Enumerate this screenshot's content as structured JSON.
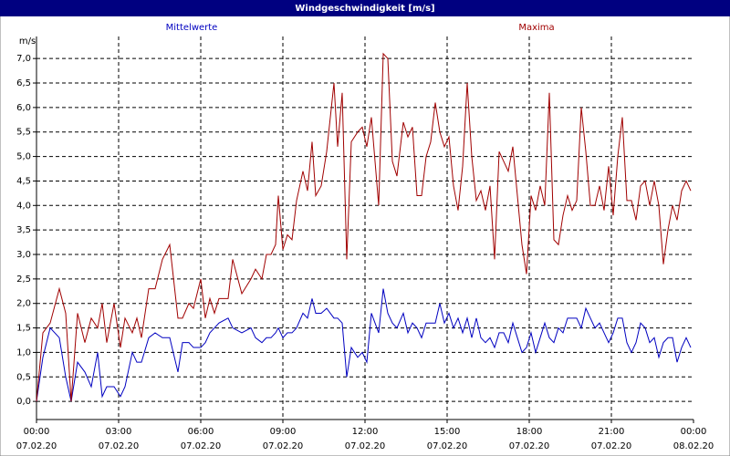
{
  "chart_data": {
    "type": "line",
    "title": "Windgeschwindigkeit [m/s]",
    "y_label": "m/s",
    "x": [
      0,
      14,
      30,
      50,
      64,
      76,
      90,
      106,
      120,
      134,
      144,
      154,
      170,
      184,
      194,
      210,
      220,
      230,
      246,
      260,
      276,
      292,
      310,
      320,
      334,
      344,
      360,
      370,
      380,
      390,
      400,
      420,
      430,
      450,
      470,
      480,
      494,
      504,
      514,
      524,
      530,
      540,
      550,
      560,
      570,
      584,
      594,
      604,
      612,
      624,
      636,
      652,
      660,
      670,
      680,
      690,
      704,
      714,
      724,
      734,
      750,
      760,
      770,
      780,
      790,
      804,
      814,
      824,
      834,
      844,
      854,
      864,
      874,
      884,
      894,
      904,
      914,
      924,
      934,
      944,
      954,
      964,
      974,
      984,
      994,
      1004,
      1014,
      1024,
      1034,
      1044,
      1054,
      1064,
      1074,
      1084,
      1094,
      1104,
      1114,
      1124,
      1134,
      1144,
      1154,
      1164,
      1174,
      1184,
      1194,
      1204,
      1214,
      1224,
      1234,
      1244,
      1254,
      1264,
      1274,
      1284,
      1294,
      1304,
      1314,
      1324,
      1334,
      1344,
      1354,
      1364,
      1374,
      1384,
      1394,
      1404,
      1414,
      1424,
      1434
    ],
    "series": [
      {
        "name": "Mittelwerte",
        "color": "#0000c0",
        "values": [
          0,
          0.9,
          1.5,
          1.3,
          0.5,
          0.0,
          0.8,
          0.6,
          0.3,
          1.0,
          0.1,
          0.3,
          0.3,
          0.1,
          0.3,
          1.0,
          0.8,
          0.8,
          1.3,
          1.4,
          1.3,
          1.3,
          0.6,
          1.2,
          1.2,
          1.1,
          1.1,
          1.2,
          1.4,
          1.5,
          1.6,
          1.7,
          1.5,
          1.4,
          1.5,
          1.3,
          1.2,
          1.3,
          1.3,
          1.4,
          1.5,
          1.3,
          1.4,
          1.4,
          1.5,
          1.8,
          1.7,
          2.1,
          1.8,
          1.8,
          1.9,
          1.7,
          1.7,
          1.6,
          0.5,
          1.1,
          0.9,
          1.0,
          0.8,
          1.8,
          1.4,
          2.3,
          1.8,
          1.6,
          1.5,
          1.8,
          1.4,
          1.6,
          1.5,
          1.3,
          1.6,
          1.6,
          1.6,
          2.0,
          1.6,
          1.8,
          1.5,
          1.7,
          1.4,
          1.7,
          1.3,
          1.7,
          1.3,
          1.2,
          1.3,
          1.1,
          1.4,
          1.4,
          1.2,
          1.6,
          1.3,
          1.0,
          1.1,
          1.4,
          1.0,
          1.3,
          1.6,
          1.3,
          1.2,
          1.5,
          1.4,
          1.7,
          1.7,
          1.7,
          1.5,
          1.9,
          1.7,
          1.5,
          1.6,
          1.4,
          1.2,
          1.4,
          1.7,
          1.7,
          1.2,
          1.0,
          1.2,
          1.6,
          1.5,
          1.2,
          1.3,
          0.9,
          1.2,
          1.3,
          1.3,
          0.8,
          1.1,
          1.3,
          1.1
        ]
      },
      {
        "name": "Maxima",
        "color": "#a00000",
        "values": [
          0,
          1.4,
          1.6,
          2.3,
          1.8,
          0.0,
          1.8,
          1.2,
          1.7,
          1.5,
          2.0,
          1.2,
          2.0,
          1.1,
          1.7,
          1.4,
          1.7,
          1.3,
          2.3,
          2.3,
          2.9,
          3.2,
          1.7,
          1.7,
          2.0,
          1.9,
          2.5,
          1.7,
          2.1,
          1.8,
          2.1,
          2.1,
          2.9,
          2.2,
          2.5,
          2.7,
          2.5,
          3.0,
          3.0,
          3.2,
          4.2,
          3.1,
          3.4,
          3.3,
          4.1,
          4.7,
          4.3,
          5.3,
          4.2,
          4.4,
          5.1,
          6.5,
          5.2,
          6.3,
          2.9,
          5.3,
          5.5,
          5.6,
          5.2,
          5.8,
          4.0,
          7.1,
          7.0,
          4.9,
          4.6,
          5.7,
          5.4,
          5.6,
          4.2,
          4.2,
          5.0,
          5.3,
          6.1,
          5.5,
          5.2,
          5.4,
          4.4,
          3.9,
          4.8,
          6.5,
          5.0,
          4.1,
          4.3,
          3.9,
          4.4,
          2.9,
          5.1,
          4.9,
          4.7,
          5.2,
          4.2,
          3.2,
          2.6,
          4.2,
          3.9,
          4.4,
          4.0,
          6.3,
          3.3,
          3.2,
          3.8,
          4.2,
          3.9,
          4.1,
          6.0,
          5.1,
          4.0,
          4.0,
          4.4,
          3.9,
          4.8,
          3.8,
          5.0,
          5.8,
          4.1,
          4.1,
          3.7,
          4.4,
          4.5,
          4.0,
          4.5,
          4.0,
          2.8,
          3.5,
          4.0,
          3.7,
          4.3,
          4.5,
          4.3
        ]
      }
    ],
    "xlim": [
      0,
      1440
    ],
    "xticks": [
      {
        "value": 0,
        "label": "00:00"
      },
      {
        "value": 180,
        "label": "03:00"
      },
      {
        "value": 360,
        "label": "06:00"
      },
      {
        "value": 540,
        "label": "09:00"
      },
      {
        "value": 720,
        "label": "12:00"
      },
      {
        "value": 900,
        "label": "15:00"
      },
      {
        "value": 1080,
        "label": "18:00"
      },
      {
        "value": 1260,
        "label": "21:00"
      },
      {
        "value": 1440,
        "label": "00:00"
      }
    ],
    "xtick_dates": [
      "07.02.20",
      "07.02.20",
      "07.02.20",
      "07.02.20",
      "07.02.20",
      "07.02.20",
      "07.02.20",
      "07.02.20",
      "08.02.20"
    ],
    "ylim": [
      -0.37,
      7.45
    ],
    "yticks": [
      {
        "value": 0,
        "label": "0,0"
      },
      {
        "value": 0.5,
        "label": "0,5"
      },
      {
        "value": 1,
        "label": "1,0"
      },
      {
        "value": 1.5,
        "label": "1,5"
      },
      {
        "value": 2,
        "label": "2,0"
      },
      {
        "value": 2.5,
        "label": "2,5"
      },
      {
        "value": 3,
        "label": "3,0"
      },
      {
        "value": 3.5,
        "label": "3,5"
      },
      {
        "value": 4,
        "label": "4,0"
      },
      {
        "value": 4.5,
        "label": "4,5"
      },
      {
        "value": 5,
        "label": "5,0"
      },
      {
        "value": 5.5,
        "label": "5,5"
      },
      {
        "value": 6,
        "label": "6,0"
      },
      {
        "value": 6.5,
        "label": "6,5"
      },
      {
        "value": 7,
        "label": "7,0"
      }
    ],
    "grid": true
  }
}
